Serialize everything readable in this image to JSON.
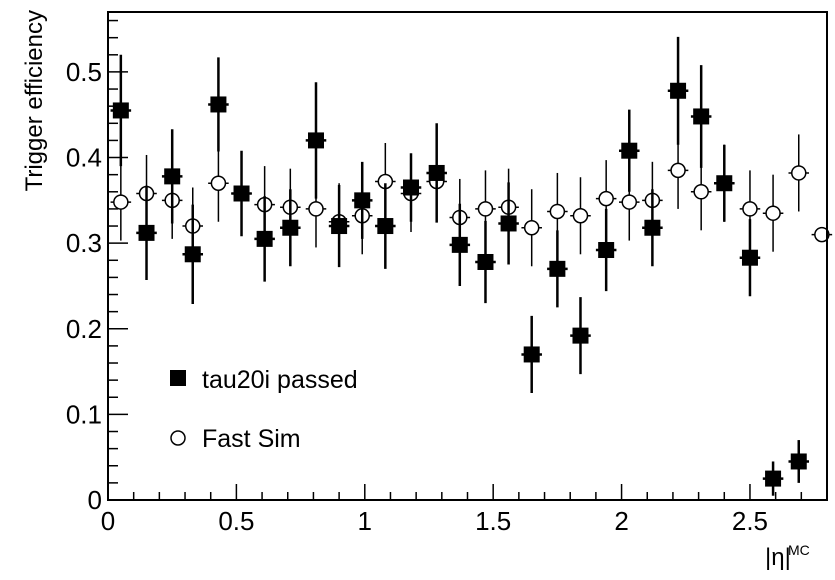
{
  "chart_data": {
    "type": "scatter",
    "title": "",
    "xlabel": "|η|",
    "xlabel_superscript": "MC",
    "ylabel": "Trigger efficiency",
    "xlim": [
      0,
      2.8
    ],
    "ylim": [
      0,
      0.57
    ],
    "x_ticks": [
      "0",
      "0.5",
      "1",
      "1.5",
      "2",
      "2.5"
    ],
    "y_ticks": [
      "0",
      "0.1",
      "0.2",
      "0.3",
      "0.4",
      "0.5"
    ],
    "grid": false,
    "legend_position": "lower-left",
    "x_bin_half_width": 0.04,
    "series": [
      {
        "name": "tau20i passed",
        "marker": "filled-square",
        "points": [
          {
            "x": 0.05,
            "y": 0.455,
            "err": 0.065
          },
          {
            "x": 0.15,
            "y": 0.312,
            "err": 0.055
          },
          {
            "x": 0.25,
            "y": 0.378,
            "err": 0.055
          },
          {
            "x": 0.33,
            "y": 0.287,
            "err": 0.058
          },
          {
            "x": 0.43,
            "y": 0.462,
            "err": 0.055
          },
          {
            "x": 0.52,
            "y": 0.358,
            "err": 0.05
          },
          {
            "x": 0.61,
            "y": 0.305,
            "err": 0.05
          },
          {
            "x": 0.71,
            "y": 0.318,
            "err": 0.045
          },
          {
            "x": 0.81,
            "y": 0.42,
            "err": 0.068
          },
          {
            "x": 0.9,
            "y": 0.32,
            "err": 0.048
          },
          {
            "x": 0.99,
            "y": 0.35,
            "err": 0.045
          },
          {
            "x": 1.08,
            "y": 0.32,
            "err": 0.05
          },
          {
            "x": 1.18,
            "y": 0.365,
            "err": 0.04
          },
          {
            "x": 1.28,
            "y": 0.382,
            "err": 0.058
          },
          {
            "x": 1.37,
            "y": 0.298,
            "err": 0.048
          },
          {
            "x": 1.47,
            "y": 0.278,
            "err": 0.048
          },
          {
            "x": 1.56,
            "y": 0.323,
            "err": 0.048
          },
          {
            "x": 1.65,
            "y": 0.17,
            "err": 0.045
          },
          {
            "x": 1.75,
            "y": 0.27,
            "err": 0.045
          },
          {
            "x": 1.84,
            "y": 0.192,
            "err": 0.045
          },
          {
            "x": 1.94,
            "y": 0.292,
            "err": 0.048
          },
          {
            "x": 2.03,
            "y": 0.408,
            "err": 0.048
          },
          {
            "x": 2.12,
            "y": 0.318,
            "err": 0.045
          },
          {
            "x": 2.22,
            "y": 0.478,
            "err": 0.063
          },
          {
            "x": 2.31,
            "y": 0.448,
            "err": 0.06
          },
          {
            "x": 2.4,
            "y": 0.37,
            "err": 0.045
          },
          {
            "x": 2.5,
            "y": 0.283,
            "err": 0.045
          },
          {
            "x": 2.59,
            "y": 0.025,
            "err": 0.02
          },
          {
            "x": 2.69,
            "y": 0.045,
            "err": 0.025
          }
        ]
      },
      {
        "name": "Fast Sim",
        "marker": "open-circle",
        "points": [
          {
            "x": 0.05,
            "y": 0.348,
            "err": 0.045
          },
          {
            "x": 0.15,
            "y": 0.358,
            "err": 0.045
          },
          {
            "x": 0.25,
            "y": 0.35,
            "err": 0.045
          },
          {
            "x": 0.33,
            "y": 0.32,
            "err": 0.045
          },
          {
            "x": 0.43,
            "y": 0.37,
            "err": 0.045
          },
          {
            "x": 0.52,
            "y": 0.358,
            "err": 0.045
          },
          {
            "x": 0.61,
            "y": 0.345,
            "err": 0.045
          },
          {
            "x": 0.71,
            "y": 0.342,
            "err": 0.045
          },
          {
            "x": 0.81,
            "y": 0.34,
            "err": 0.045
          },
          {
            "x": 0.9,
            "y": 0.325,
            "err": 0.045
          },
          {
            "x": 0.99,
            "y": 0.332,
            "err": 0.045
          },
          {
            "x": 1.08,
            "y": 0.372,
            "err": 0.045
          },
          {
            "x": 1.18,
            "y": 0.358,
            "err": 0.045
          },
          {
            "x": 1.28,
            "y": 0.372,
            "err": 0.045
          },
          {
            "x": 1.37,
            "y": 0.33,
            "err": 0.045
          },
          {
            "x": 1.47,
            "y": 0.34,
            "err": 0.045
          },
          {
            "x": 1.56,
            "y": 0.342,
            "err": 0.045
          },
          {
            "x": 1.65,
            "y": 0.318,
            "err": 0.045
          },
          {
            "x": 1.75,
            "y": 0.337,
            "err": 0.045
          },
          {
            "x": 1.84,
            "y": 0.332,
            "err": 0.045
          },
          {
            "x": 1.94,
            "y": 0.352,
            "err": 0.045
          },
          {
            "x": 2.03,
            "y": 0.348,
            "err": 0.045
          },
          {
            "x": 2.12,
            "y": 0.35,
            "err": 0.045
          },
          {
            "x": 2.22,
            "y": 0.385,
            "err": 0.045
          },
          {
            "x": 2.31,
            "y": 0.36,
            "err": 0.045
          },
          {
            "x": 2.4,
            "y": 0.37,
            "err": 0.045
          },
          {
            "x": 2.5,
            "y": 0.34,
            "err": 0.045
          },
          {
            "x": 2.59,
            "y": 0.335,
            "err": 0.045
          },
          {
            "x": 2.69,
            "y": 0.382,
            "err": 0.045
          },
          {
            "x": 2.78,
            "y": 0.31,
            "err": 0.0
          }
        ]
      }
    ]
  }
}
